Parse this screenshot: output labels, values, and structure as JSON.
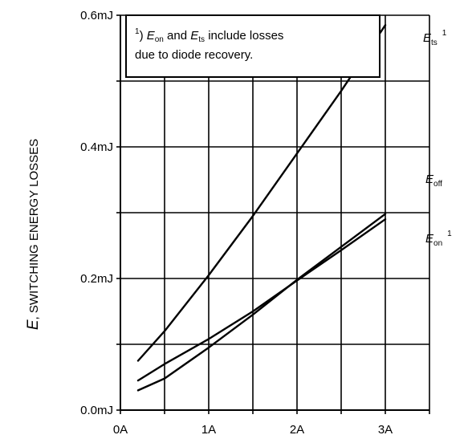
{
  "chart_data": {
    "type": "line",
    "xlabel": "",
    "ylabel": {
      "symbol": "E",
      "text": ", SWITCHING ENERGY LOSSES"
    },
    "xlim": [
      0,
      3.5
    ],
    "ylim": [
      0,
      0.6
    ],
    "x_ticks": [
      {
        "value": 0,
        "label": "0A"
      },
      {
        "value": 1,
        "label": "1A"
      },
      {
        "value": 2,
        "label": "2A"
      },
      {
        "value": 3,
        "label": "3A"
      }
    ],
    "y_ticks": [
      {
        "value": 0.0,
        "label": "0.0mJ"
      },
      {
        "value": 0.2,
        "label": "0.2mJ"
      },
      {
        "value": 0.4,
        "label": "0.4mJ"
      },
      {
        "value": 0.6,
        "label": "0.6mJ"
      }
    ],
    "grid": true,
    "series": [
      {
        "name": "Ets",
        "label": {
          "symbol": "E",
          "subscript": "ts",
          "superscript": "1"
        },
        "x": [
          0.2,
          0.5,
          1.0,
          1.5,
          2.0,
          2.5,
          3.0
        ],
        "y": [
          0.075,
          0.12,
          0.205,
          0.295,
          0.39,
          0.485,
          0.585
        ]
      },
      {
        "name": "Eoff",
        "label": {
          "symbol": "E",
          "subscript": "off",
          "superscript": ""
        },
        "x": [
          0.2,
          0.5,
          1.0,
          1.5,
          2.0,
          2.5,
          3.0
        ],
        "y": [
          0.045,
          0.07,
          0.108,
          0.15,
          0.197,
          0.243,
          0.29
        ]
      },
      {
        "name": "Eon",
        "label": {
          "symbol": "E",
          "subscript": "on",
          "superscript": "1"
        },
        "x": [
          0.2,
          0.5,
          1.0,
          1.5,
          2.0,
          2.5,
          3.0
        ],
        "y": [
          0.03,
          0.048,
          0.095,
          0.145,
          0.198,
          0.248,
          0.298
        ]
      }
    ],
    "annotation": {
      "marker": "1",
      "symbol_a": "E",
      "sub_a": "on",
      "and_text": " and ",
      "symbol_b": "E",
      "sub_b": "ts",
      "line1_rest": " include losses",
      "line2": "due to diode recovery."
    }
  }
}
